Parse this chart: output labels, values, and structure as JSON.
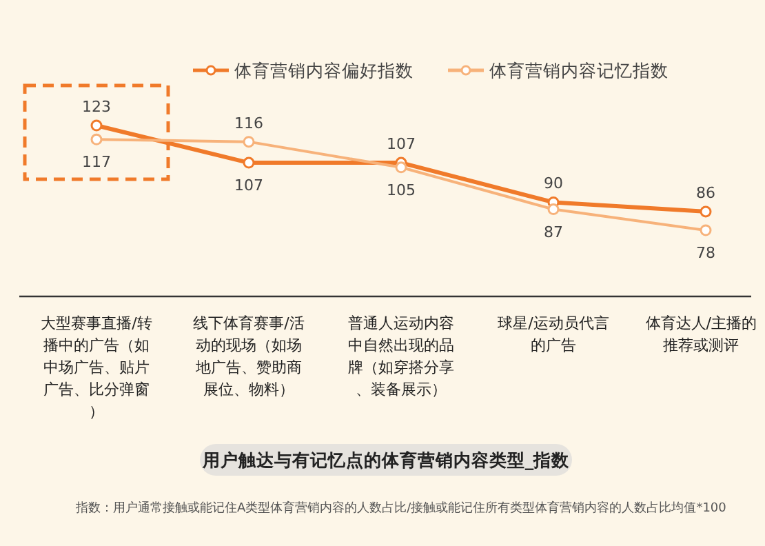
{
  "chart_data": {
    "type": "line",
    "title": "用户触达与有记忆点的体育营销内容类型_指数",
    "categories": [
      "大型赛事直播/转播中的广告（如中场广告、贴片广告、比分弹窗）",
      "线下体育赛事/活动的现场（如场地广告、赞助商展位、物料）",
      "普通人运动内容中自然出现的品牌（如穿搭分享、装备展示）",
      "球星/运动员代言的广告",
      "体育达人/主播的推荐或测评"
    ],
    "series": [
      {
        "name": "体育营销内容偏好指数",
        "color": "#f07a2a",
        "values": [
          123,
          107,
          107,
          90,
          86
        ]
      },
      {
        "name": "体育营销内容记忆指数",
        "color": "#f7b27a",
        "values": [
          117,
          116,
          105,
          87,
          78
        ]
      }
    ],
    "data_labels": true,
    "marker": "circle",
    "legend": "top",
    "annotations": [
      "指数：用户通常接触或能记住A类型体育营销内容的人数占比/接触或能记住所有类型体育营销内容的人数占比均值*100"
    ]
  }
}
